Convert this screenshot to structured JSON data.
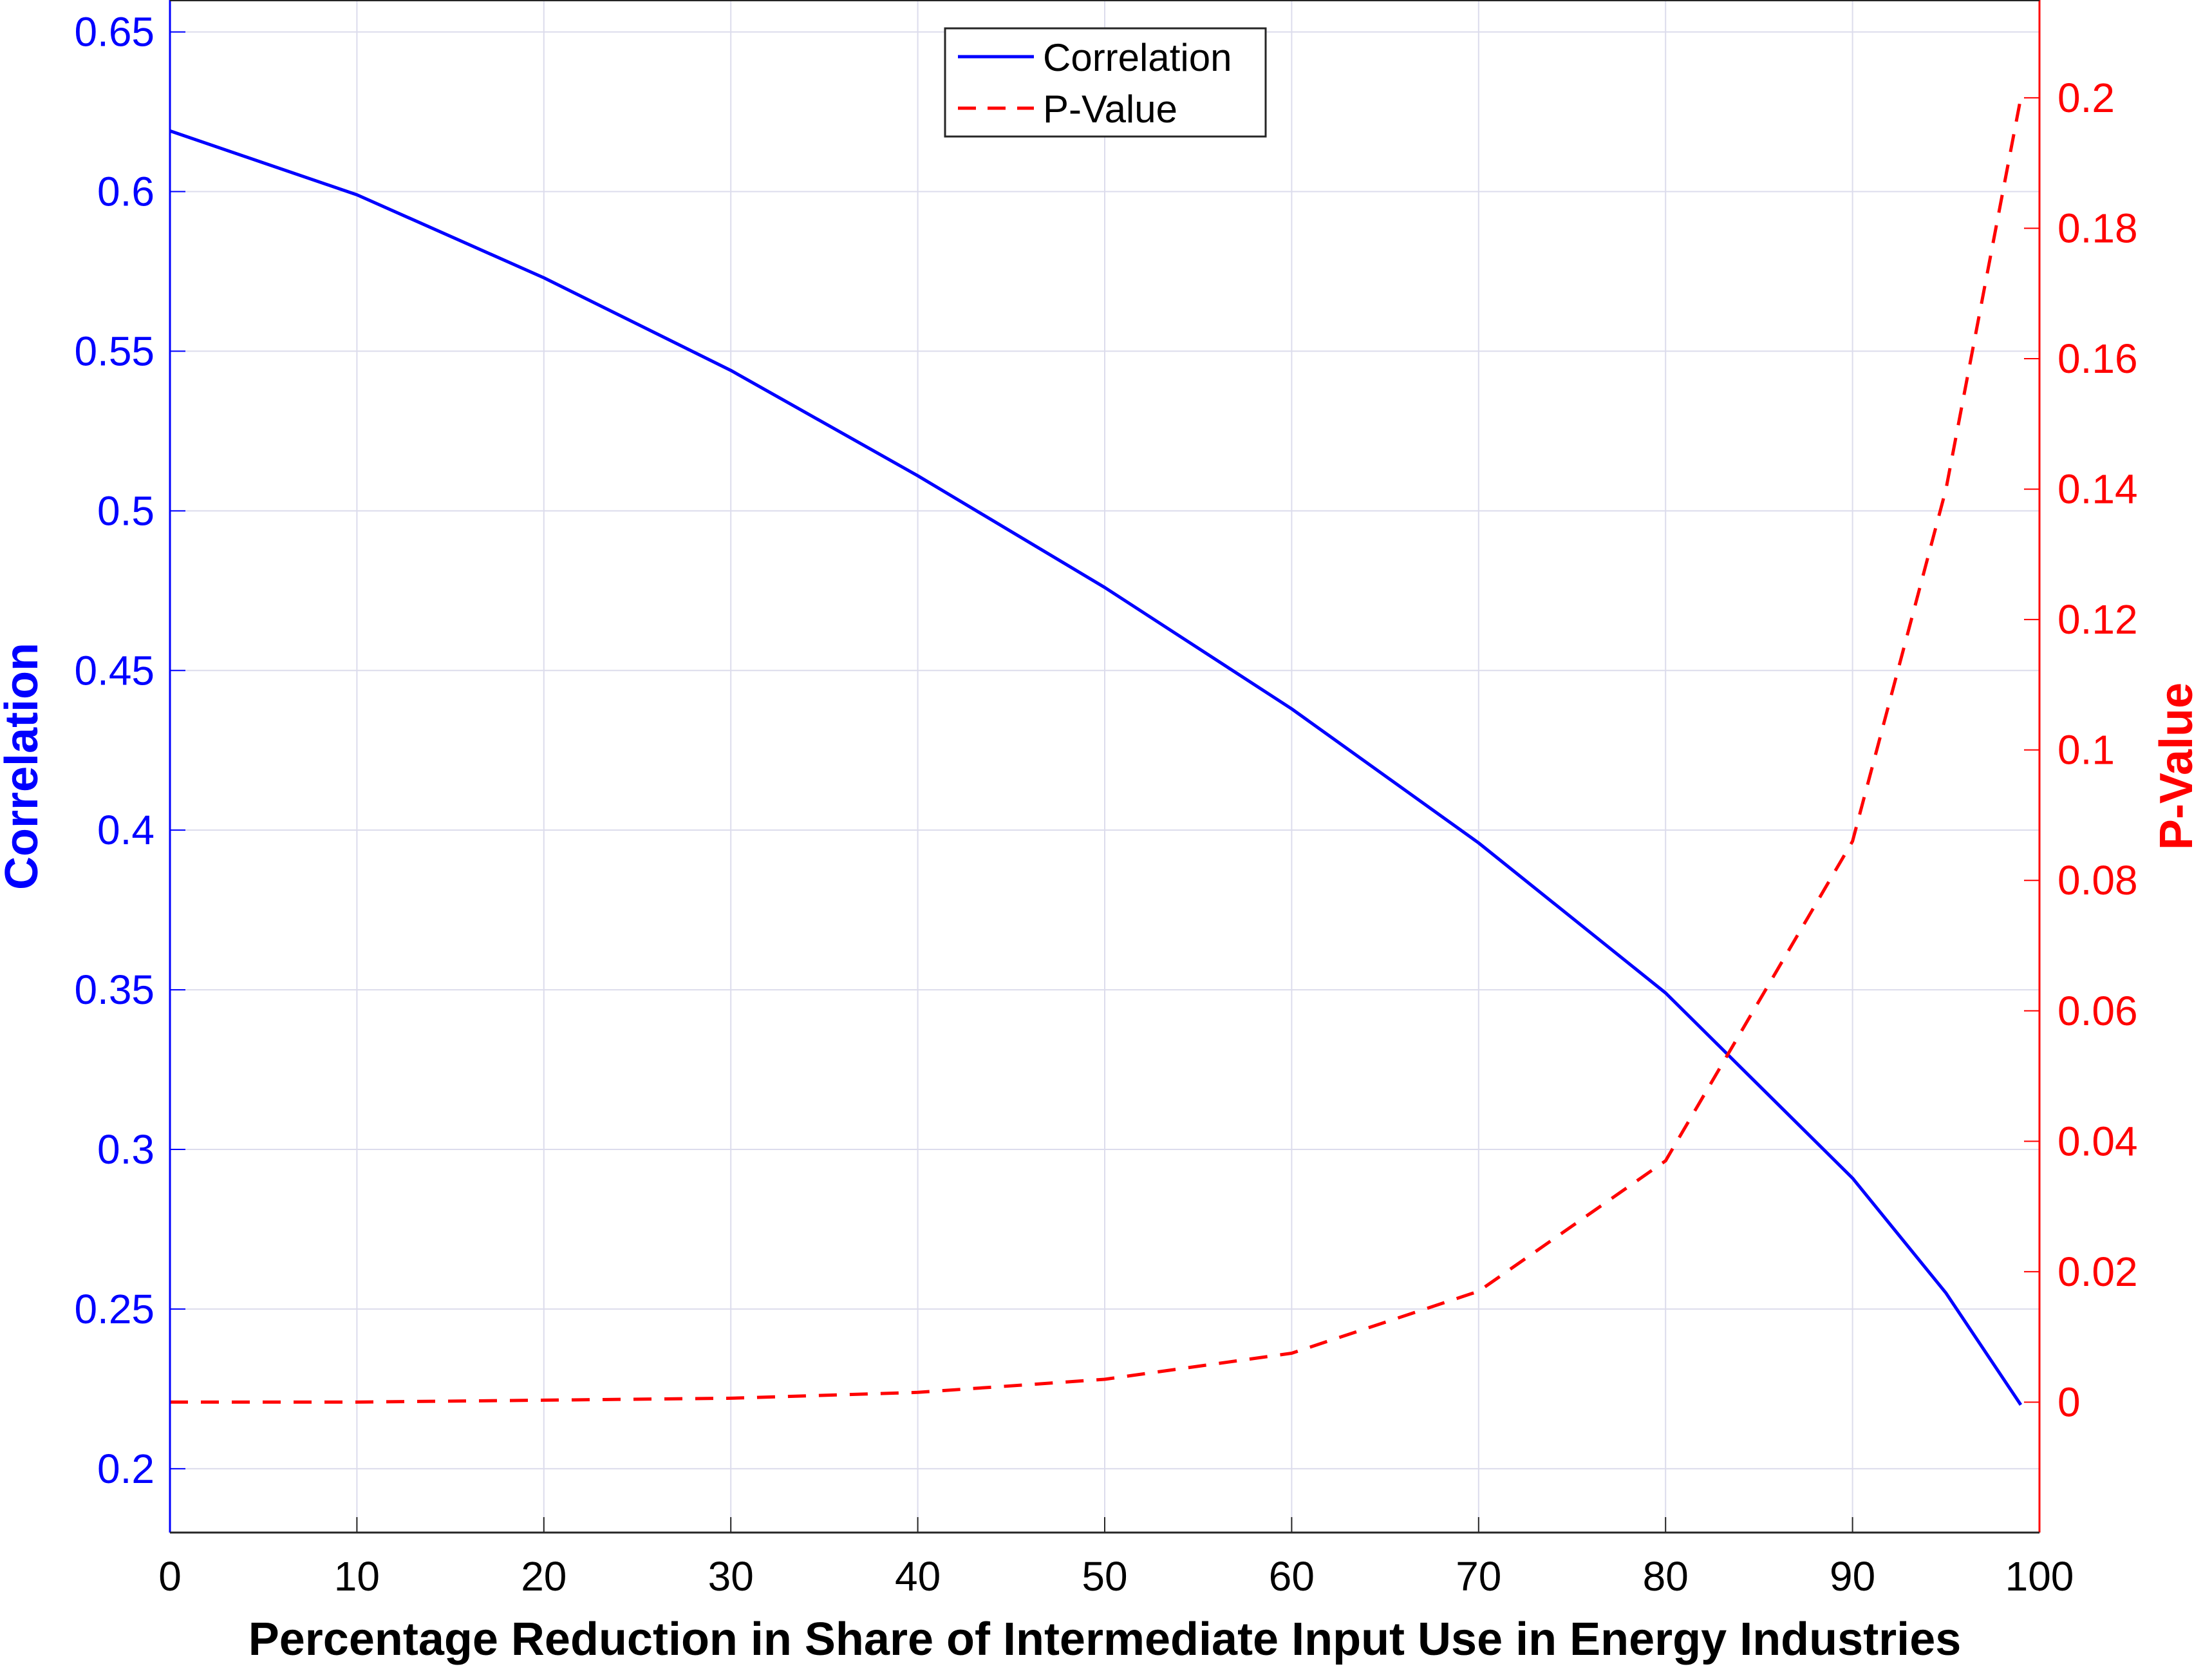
{
  "chart_data": {
    "type": "line",
    "xlabel": "Percentage Reduction in Share of Intermediate Input Use in Energy Industries",
    "xlim": [
      0,
      100
    ],
    "xticks": [
      0,
      10,
      20,
      30,
      40,
      50,
      60,
      70,
      80,
      90,
      100
    ],
    "left_axis": {
      "label": "Correlation",
      "ylim": [
        0.18,
        0.66
      ],
      "ticks": [
        0.2,
        0.25,
        0.3,
        0.35,
        0.4,
        0.45,
        0.5,
        0.55,
        0.6,
        0.65
      ],
      "color": "#0000ff"
    },
    "right_axis": {
      "label": "P-Value",
      "ylim": [
        -0.02,
        0.215
      ],
      "ticks": [
        0,
        0.02,
        0.04,
        0.06,
        0.08,
        0.1,
        0.12,
        0.14,
        0.16,
        0.18,
        0.2
      ],
      "color": "#ff0000"
    },
    "grid": true,
    "legend_position": "top-center",
    "series": [
      {
        "name": "Correlation",
        "axis": "left",
        "color": "#0000ff",
        "style": "solid",
        "x": [
          0,
          10,
          20,
          30,
          40,
          50,
          60,
          70,
          80,
          90,
          95,
          99
        ],
        "y": [
          0.619,
          0.599,
          0.573,
          0.544,
          0.511,
          0.476,
          0.438,
          0.396,
          0.349,
          0.291,
          0.255,
          0.22
        ]
      },
      {
        "name": "P-Value",
        "axis": "right",
        "color": "#ff0000",
        "style": "dashed",
        "x": [
          0,
          10,
          20,
          30,
          40,
          50,
          60,
          70,
          80,
          90,
          95,
          99
        ],
        "y": [
          0.0,
          0.0,
          0.0003,
          0.0006,
          0.0015,
          0.0035,
          0.0075,
          0.017,
          0.037,
          0.086,
          0.14,
          0.2
        ]
      }
    ]
  }
}
